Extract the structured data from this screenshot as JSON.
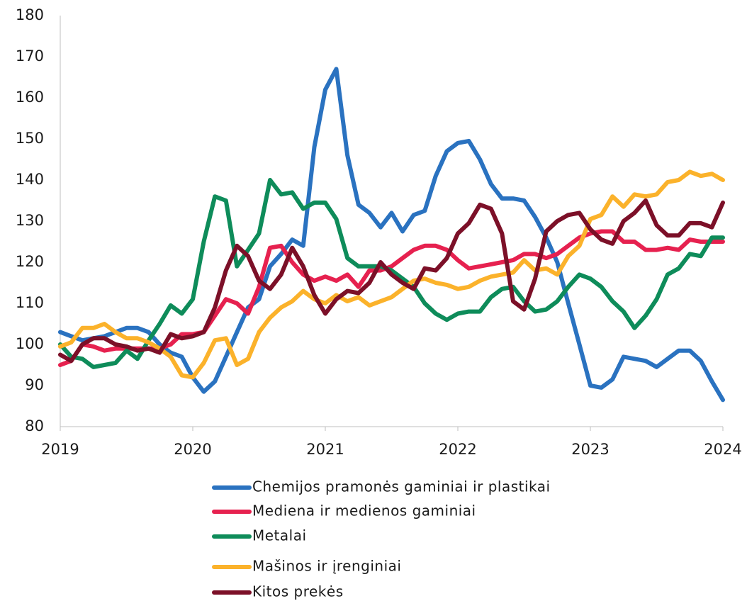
{
  "chart_data": {
    "type": "line",
    "x": [
      2019,
      2019.083,
      2019.167,
      2019.25,
      2019.333,
      2019.417,
      2019.5,
      2019.583,
      2019.667,
      2019.75,
      2019.833,
      2019.917,
      2020,
      2020.083,
      2020.167,
      2020.25,
      2020.333,
      2020.417,
      2020.5,
      2020.583,
      2020.667,
      2020.75,
      2020.833,
      2020.917,
      2021,
      2021.083,
      2021.167,
      2021.25,
      2021.333,
      2021.417,
      2021.5,
      2021.583,
      2021.667,
      2021.75,
      2021.833,
      2021.917,
      2022,
      2022.083,
      2022.167,
      2022.25,
      2022.333,
      2022.417,
      2022.5,
      2022.583,
      2022.667,
      2022.75,
      2022.833,
      2022.917,
      2023,
      2023.083,
      2023.167,
      2023.25,
      2023.333,
      2023.417,
      2023.5,
      2023.583,
      2023.667,
      2023.75,
      2023.833,
      2023.917,
      2024
    ],
    "series": [
      {
        "name": "Chemijos pramonės gaminiai ir plastikai",
        "color": "#2a72c0",
        "values": [
          103,
          102,
          101,
          101.5,
          102,
          103,
          104,
          104,
          103,
          100,
          98,
          97,
          92,
          88.5,
          91,
          97,
          103,
          109,
          111,
          119,
          122,
          125.5,
          124,
          148,
          162,
          167,
          146,
          134,
          132,
          128.5,
          132,
          127.5,
          131.5,
          132.5,
          141,
          147,
          149,
          149.5,
          145,
          139,
          135.5,
          135.5,
          135,
          131,
          126,
          120,
          110,
          100,
          90,
          89.5,
          91.5,
          97,
          96.5,
          96,
          94.5,
          96.5,
          98.5,
          98.5,
          96,
          91,
          86.5
        ]
      },
      {
        "name": "Mediena ir medienos gaminiai",
        "color": "#e6214f",
        "values": [
          95,
          96,
          100,
          99.5,
          98.5,
          99,
          99,
          99,
          99,
          99,
          100,
          102.5,
          102.5,
          103,
          107,
          111,
          110,
          107.5,
          114,
          123.5,
          124,
          120,
          117,
          115.5,
          116.5,
          115.5,
          117,
          114,
          118,
          118,
          119,
          121,
          123,
          124,
          124,
          123,
          120.5,
          118.5,
          119,
          119.5,
          120,
          120.5,
          122,
          122,
          121,
          122,
          124,
          126,
          127,
          127.5,
          127.5,
          125,
          125,
          123,
          123,
          123.5,
          123,
          125.5,
          125,
          125,
          125
        ]
      },
      {
        "name": "Metalai",
        "color": "#0e8c5a",
        "values": [
          100,
          97,
          96.5,
          94.5,
          95,
          95.5,
          98.5,
          96.5,
          101,
          105,
          109.5,
          107.5,
          111,
          125,
          136,
          135,
          119,
          123,
          127,
          140,
          136.5,
          137,
          133,
          134.5,
          134.5,
          130.5,
          121,
          119,
          119,
          119,
          118,
          116,
          114,
          110,
          107.5,
          106,
          107.5,
          108,
          108,
          111.5,
          113.5,
          114,
          110.5,
          108,
          108.5,
          110.5,
          114,
          117,
          116,
          114,
          110.5,
          108,
          104,
          107,
          111,
          117,
          118.5,
          122,
          121.5,
          126,
          126
        ]
      },
      {
        "name": "Mašinos ir įrenginiai",
        "color": "#fbb22b",
        "values": [
          99.5,
          100.5,
          104,
          104,
          105,
          103,
          101.5,
          101.5,
          100.5,
          99,
          97,
          92.5,
          92,
          95.5,
          101,
          101.5,
          95,
          96.5,
          103,
          106.5,
          109,
          110.5,
          113,
          111,
          110,
          112,
          110.5,
          111.5,
          109.5,
          110.5,
          111.5,
          113.5,
          115.5,
          116,
          115,
          114.5,
          113.5,
          114,
          115.5,
          116.5,
          117,
          117.5,
          120.5,
          118,
          118.5,
          117,
          121.5,
          124,
          130.5,
          131.5,
          136,
          133.5,
          136.5,
          136,
          136.5,
          139.5,
          140,
          142,
          141,
          141.5,
          140
        ]
      },
      {
        "name": "Kitos prekės",
        "color": "#7c1028",
        "values": [
          97.5,
          96,
          100,
          101.5,
          101.5,
          100,
          99.5,
          98.5,
          99,
          98,
          102.5,
          101.5,
          102,
          103,
          109,
          118,
          124,
          121.5,
          115.5,
          113.5,
          117,
          123.5,
          119,
          112,
          107.5,
          111,
          113,
          112.5,
          115,
          120,
          117,
          115,
          113.5,
          118.5,
          118,
          121,
          127,
          129.5,
          134,
          133,
          127,
          110.5,
          108.5,
          116,
          127.5,
          130,
          131.5,
          132,
          128,
          125.5,
          124.5,
          130,
          132,
          135,
          129,
          126.5,
          126.5,
          129.5,
          129.5,
          128.5,
          134.5
        ]
      }
    ],
    "xlim": [
      2019,
      2024
    ],
    "xticks": [
      2019,
      2020,
      2021,
      2022,
      2023,
      2024
    ],
    "ylim": [
      80,
      180
    ],
    "yticks": [
      80,
      90,
      100,
      110,
      120,
      130,
      140,
      150,
      160,
      170,
      180
    ],
    "grid": false,
    "legend": "bottom"
  }
}
